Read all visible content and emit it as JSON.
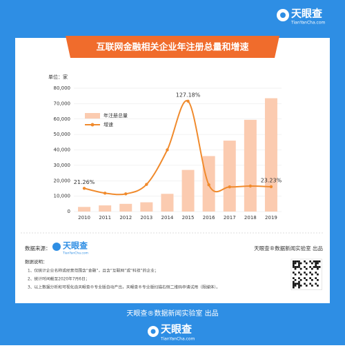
{
  "brand": {
    "name": "天眼查",
    "url": "TianYanCha.com"
  },
  "chart_data": {
    "type": "bar_line",
    "title": "互联网金融相关企业年注册总量和增速",
    "unit_label": "单位：家",
    "categories": [
      "2010",
      "2011",
      "2012",
      "2013",
      "2014",
      "2015",
      "2016",
      "2017",
      "2018",
      "2019"
    ],
    "series": [
      {
        "name": "年注册总量",
        "color": "#fbcbb0",
        "kind": "bar",
        "values": [
          3000,
          4000,
          5000,
          6000,
          11500,
          27000,
          36000,
          46000,
          59500,
          73500
        ]
      },
      {
        "name": "增速",
        "color": "#f08a2c",
        "kind": "line",
        "axis": "y2",
        "values": [
          21.26,
          15.4,
          14.5,
          26,
          68,
          127.18,
          25.5,
          23,
          24,
          23.23
        ],
        "value_labels": [
          "21.26%",
          null,
          null,
          null,
          null,
          "127.18%",
          null,
          null,
          null,
          "23.23%"
        ]
      }
    ],
    "ylim": [
      0,
      80000
    ],
    "yticks": [
      0,
      {
        "value": 10000,
        "label": "10,000"
      },
      {
        "value": 20000,
        "label": "20,000"
      },
      {
        "value": 30000,
        "label": "30,000"
      },
      {
        "value": 40000,
        "label": "40,000"
      },
      {
        "value": 50000,
        "label": "50,000"
      },
      {
        "value": 60000,
        "label": "60,000"
      },
      {
        "value": 70000,
        "label": "70,000"
      },
      {
        "value": 80000,
        "label": "80,000"
      }
    ],
    "y2lim": [
      -7,
      143
    ],
    "grid": true,
    "legend": "upper left"
  },
  "source": {
    "label": "数据来源：",
    "credit": "天眼查®数据新闻实验室 出品"
  },
  "notes": {
    "title": "数据说明：",
    "items": [
      "1、仅统计企业名称或经营范围含“金融”，且含“互联网”或“科技”的企业；",
      "2、统计时间截至2020年7月6日；",
      "3、以上数据分析和可视化由天眼查®专业版自动产出，天眼查®专业版扫描右侧二维码申请试用（限媒体）。"
    ]
  },
  "footer": {
    "credit": "天眼查®数据新闻实验室 出品"
  }
}
